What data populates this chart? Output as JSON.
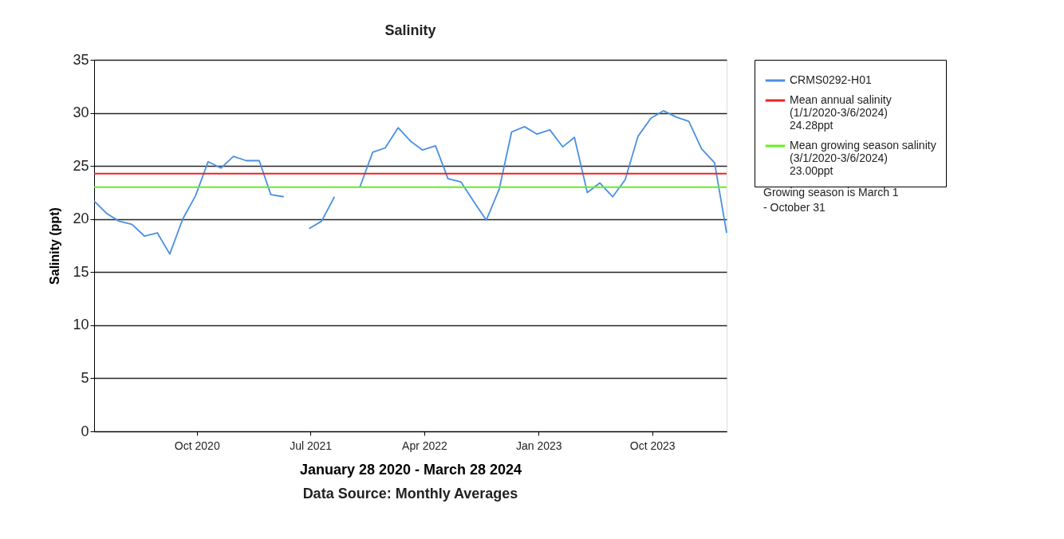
{
  "chart_data": {
    "type": "line",
    "title": "Salinity",
    "xlabel": "January 28 2020 - March 28 2024",
    "ylabel": "Salinity (ppt)",
    "x": [
      "2020-01-28",
      "2020-02-28",
      "2020-03-28",
      "2020-04-28",
      "2020-05-28",
      "2020-06-28",
      "2020-07-28",
      "2020-08-28",
      "2020-09-28",
      "2020-10-28",
      "2020-11-28",
      "2020-12-28",
      "2021-01-28",
      "2021-02-28",
      "2021-03-28",
      "2021-04-28",
      "2021-05-28",
      "2021-06-28",
      "2021-07-28",
      "2021-08-28",
      "2021-09-28",
      "2021-10-28",
      "2021-11-28",
      "2021-12-28",
      "2022-01-28",
      "2022-02-28",
      "2022-03-28",
      "2022-04-28",
      "2022-05-28",
      "2022-06-28",
      "2022-07-28",
      "2022-08-28",
      "2022-09-28",
      "2022-10-28",
      "2022-11-28",
      "2022-12-28",
      "2023-01-28",
      "2023-02-28",
      "2023-03-28",
      "2023-04-28",
      "2023-05-28",
      "2023-06-28",
      "2023-07-28",
      "2023-08-28",
      "2023-09-28",
      "2023-10-28",
      "2023-11-28",
      "2023-12-28",
      "2024-01-28",
      "2024-02-28",
      "2024-03-28"
    ],
    "series": [
      {
        "name": "CRMS0292-H01",
        "color": "#4a90e2",
        "values": [
          21.7,
          20.5,
          19.8,
          19.5,
          18.4,
          18.7,
          16.7,
          20.0,
          22.2,
          25.4,
          24.8,
          25.9,
          25.5,
          25.5,
          22.3,
          22.1,
          null,
          19.1,
          19.8,
          22.1,
          null,
          23.0,
          26.3,
          26.7,
          28.6,
          27.3,
          26.5,
          26.9,
          23.8,
          23.5,
          21.7,
          19.9,
          22.8,
          28.2,
          28.7,
          28.0,
          28.4,
          26.8,
          27.7,
          22.5,
          23.4,
          22.1,
          23.7,
          27.8,
          29.5,
          30.2,
          29.6,
          29.2,
          26.6,
          25.3,
          18.7
        ]
      }
    ],
    "ref_lines": [
      {
        "axis": "y",
        "value": 24.28,
        "label": "Mean annual salinity\n(1/1/2020-3/6/2024)\n24.28ppt",
        "color": "#ee2222"
      },
      {
        "axis": "y",
        "value": 23.0,
        "label": "Mean growing season salinity\n(3/1/2020-3/6/2024)\n23.00ppt",
        "color": "#66ee22"
      }
    ],
    "xlim": [
      "2020-01-28",
      "2024-03-28"
    ],
    "xticks": [
      {
        "value": "2020-10-01",
        "label": "Oct 2020"
      },
      {
        "value": "2021-07-01",
        "label": "Jul 2021"
      },
      {
        "value": "2022-04-01",
        "label": "Apr 2022"
      },
      {
        "value": "2023-01-01",
        "label": "Jan 2023"
      },
      {
        "value": "2023-10-01",
        "label": "Oct 2023"
      }
    ],
    "ylim": [
      0,
      35
    ],
    "yticks": [
      0,
      5,
      10,
      15,
      20,
      25,
      30,
      35
    ],
    "grid": "y",
    "legend": "right",
    "annotations": [
      "Data Source: Monthly Averages",
      "Growing season is March 1\n- October 31"
    ]
  }
}
